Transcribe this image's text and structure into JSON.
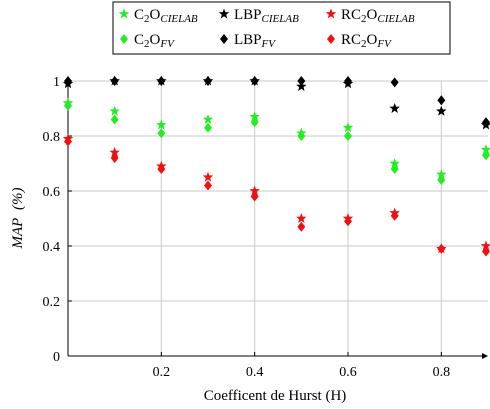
{
  "chart_data": {
    "type": "scatter",
    "title": "",
    "xlabel": "Coefficent de Hurst (H)",
    "ylabel_main": "MAP",
    "ylabel_unit": "(%)",
    "xlim": [
      0.0,
      0.9
    ],
    "ylim": [
      0,
      1
    ],
    "xticks": [
      0.2,
      0.4,
      0.6,
      0.8
    ],
    "xtick_labels": [
      "0.2",
      "0.4",
      "0.6",
      "0.8"
    ],
    "yticks": [
      0,
      0.2,
      0.4,
      0.6,
      0.8,
      1
    ],
    "ytick_labels": [
      "0",
      "0.2",
      "0.4",
      "0.6",
      "0.8",
      "1"
    ],
    "grid": true,
    "legend_position": "top",
    "x": [
      0.0,
      0.1,
      0.2,
      0.3,
      0.4,
      0.5,
      0.6,
      0.7,
      0.8,
      0.9
    ],
    "series": [
      {
        "name_base": "C",
        "name_sub2": "2",
        "name_mid": "O",
        "name_sub": "CIELAB",
        "marker": "star",
        "color": "#22ee22",
        "values": [
          0.92,
          0.89,
          0.84,
          0.86,
          0.87,
          0.81,
          0.83,
          0.7,
          0.66,
          0.75
        ]
      },
      {
        "name_base": "LBP",
        "name_sub2": "",
        "name_mid": "",
        "name_sub": "CIELAB",
        "marker": "star",
        "color": "#000000",
        "values": [
          0.99,
          1.0,
          1.0,
          1.0,
          1.0,
          0.98,
          0.99,
          0.9,
          0.89,
          0.84
        ]
      },
      {
        "name_base": "RC",
        "name_sub2": "2",
        "name_mid": "O",
        "name_sub": "CIELAB",
        "marker": "star",
        "color": "#ee1111",
        "values": [
          0.79,
          0.74,
          0.69,
          0.65,
          0.6,
          0.5,
          0.5,
          0.52,
          0.39,
          0.4
        ]
      },
      {
        "name_base": "C",
        "name_sub2": "2",
        "name_mid": "O",
        "name_sub": "FV",
        "marker": "diamond",
        "color": "#22ee22",
        "values": [
          0.91,
          0.86,
          0.81,
          0.83,
          0.85,
          0.8,
          0.8,
          0.68,
          0.64,
          0.73
        ]
      },
      {
        "name_base": "LBP",
        "name_sub2": "",
        "name_mid": "",
        "name_sub": "FV",
        "marker": "diamond",
        "color": "#000000",
        "values": [
          1.0,
          1.0,
          1.0,
          1.0,
          1.0,
          1.0,
          1.0,
          0.995,
          0.93,
          0.85
        ]
      },
      {
        "name_base": "RC",
        "name_sub2": "2",
        "name_mid": "O",
        "name_sub": "FV",
        "marker": "diamond",
        "color": "#ee1111",
        "values": [
          0.78,
          0.72,
          0.68,
          0.62,
          0.58,
          0.47,
          0.49,
          0.51,
          0.39,
          0.38
        ]
      }
    ]
  }
}
